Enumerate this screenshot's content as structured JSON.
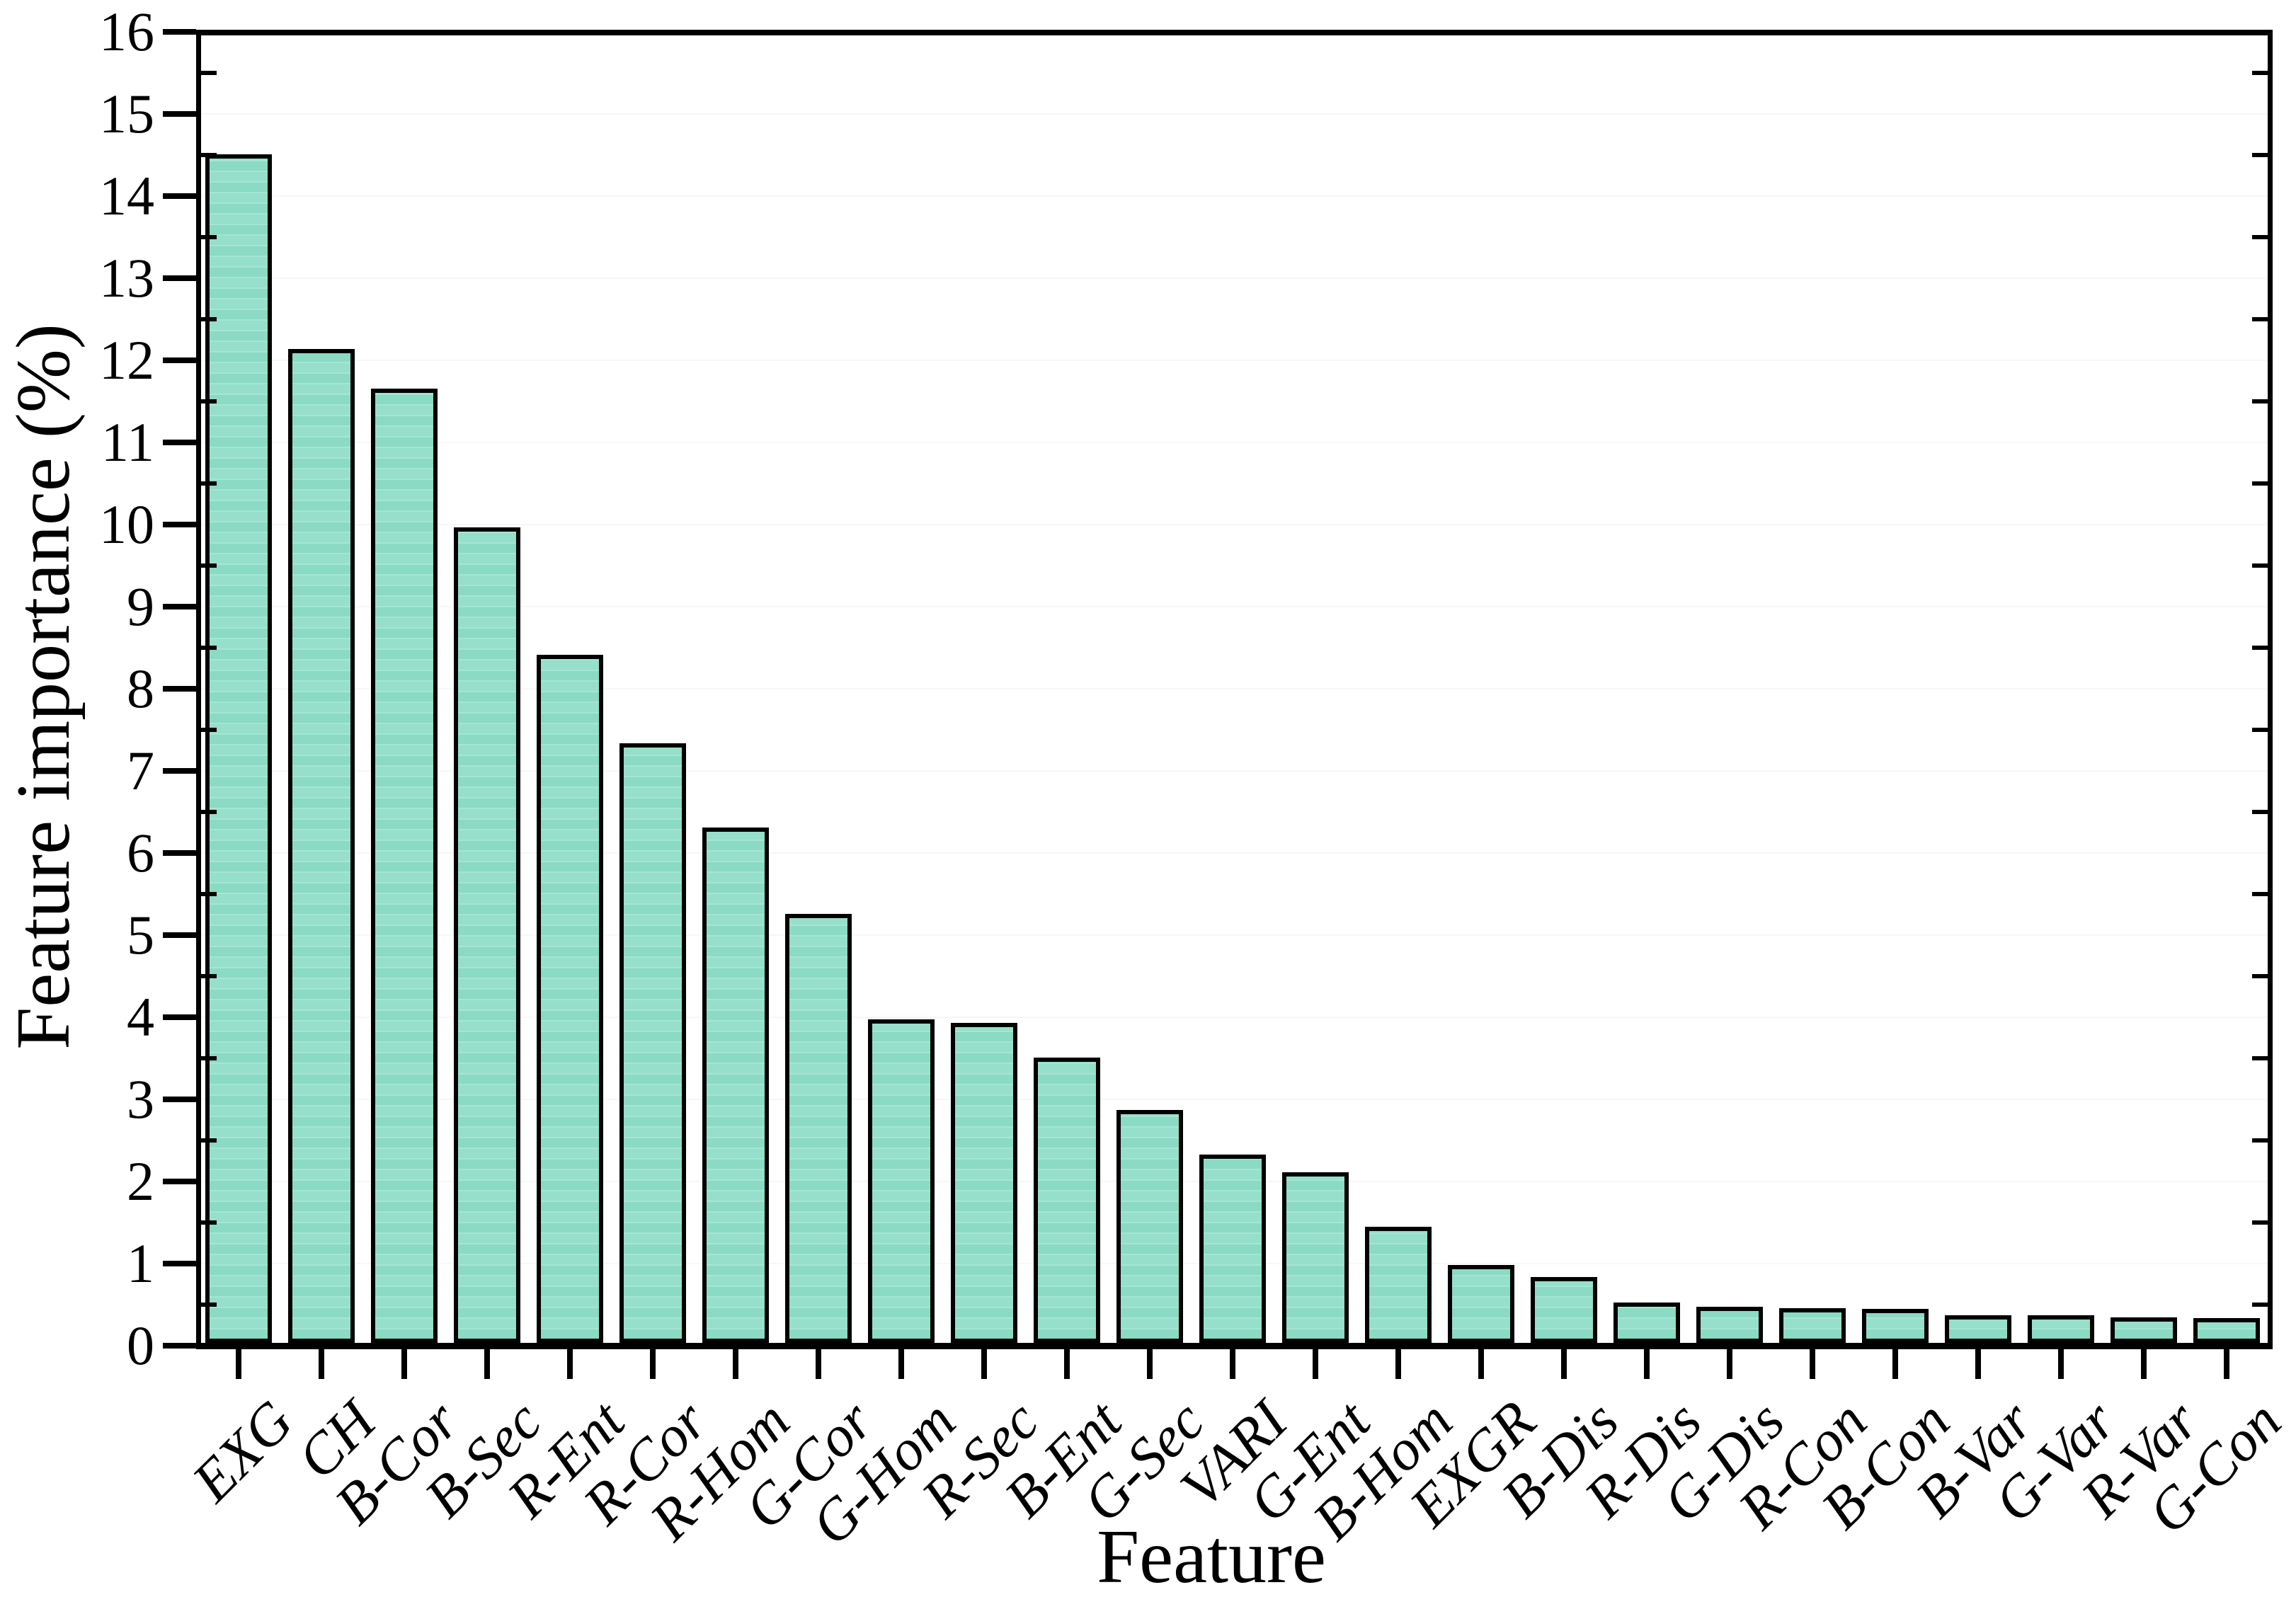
{
  "chart_data": {
    "type": "bar",
    "title": "",
    "xlabel": "Feature",
    "ylabel": "Feature importance (%)",
    "ylim": [
      0,
      16
    ],
    "ytick_step": 1,
    "ytick_labels": [
      "0",
      "1",
      "2",
      "3",
      "4",
      "5",
      "6",
      "7",
      "8",
      "9",
      "10",
      "11",
      "12",
      "13",
      "14",
      "15",
      "16"
    ],
    "minor_tick_step": 0.5,
    "grid": "off",
    "legend_position": "none",
    "plot_style": "full box frame, major y ticks outward left, minor y ticks inward, x ticks outward at bar centers, labels rotated 45deg italic",
    "categories": [
      "EXG",
      "CH",
      "B-Cor",
      "B-Sec",
      "R-Ent",
      "R-Cor",
      "R-Hom",
      "G-Cor",
      "G-Hom",
      "R-Sec",
      "B-Ent",
      "G-Sec",
      "VARI",
      "G-Ent",
      "B-Hom",
      "EXGR",
      "B-Dis",
      "R-Dis",
      "G-Dis",
      "R-Con",
      "B-Con",
      "B-Var",
      "G-Var",
      "R-Var",
      "G-Con"
    ],
    "values": [
      14.47,
      12.1,
      11.62,
      9.93,
      8.38,
      7.3,
      6.28,
      5.22,
      3.94,
      3.9,
      3.47,
      2.84,
      2.29,
      2.08,
      1.41,
      0.95,
      0.8,
      0.49,
      0.44,
      0.42,
      0.41,
      0.34,
      0.34,
      0.31,
      0.3
    ],
    "colors": {
      "bar_fill": "#8fdcc6",
      "bar_fill_light": "#9ae1cd",
      "bar_border": "#000000",
      "axis": "#000000",
      "background": "#ffffff",
      "text": "#000000"
    }
  }
}
